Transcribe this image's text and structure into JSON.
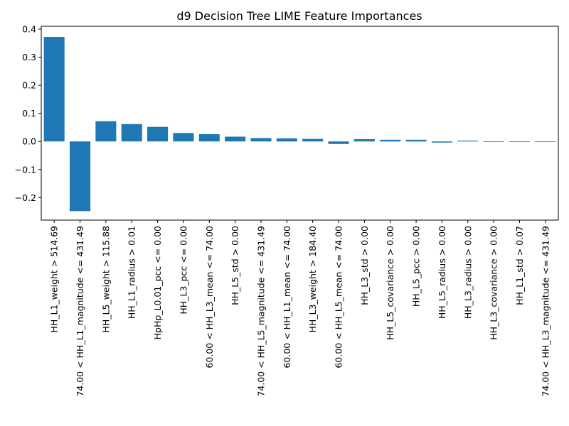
{
  "chart_data": {
    "type": "bar",
    "title": "d9 Decision Tree LIME Feature Importances",
    "xlabel": "",
    "ylabel": "",
    "ylim": [
      -0.28,
      0.41
    ],
    "yticks": [
      -0.2,
      -0.1,
      0.0,
      0.1,
      0.2,
      0.3,
      0.4
    ],
    "ytick_labels": [
      "−0.2",
      "−0.1",
      "0.0",
      "0.1",
      "0.2",
      "0.3",
      "0.4"
    ],
    "bar_color": "#1f77b4",
    "grid": false,
    "categories": [
      "HH_L1_weight > 514.69",
      "74.00 < HH_L1_magnitude <= 431.49",
      "HH_L5_weight > 115.88",
      "HH_L1_radius > 0.01",
      "HpHp_L0.01_pcc <= 0.00",
      "HH_L3_pcc <= 0.00",
      "60.00 < HH_L3_mean <= 74.00",
      "HH_L5_std > 0.00",
      "74.00 < HH_L5_magnitude <= 431.49",
      "60.00 < HH_L1_mean <= 74.00",
      "HH_L3_weight > 184.40",
      "60.00 < HH_L5_mean <= 74.00",
      "HH_L3_std > 0.00",
      "HH_L5_covariance > 0.00",
      "HH_L5_pcc > 0.00",
      "HH_L5_radius > 0.00",
      "HH_L3_radius > 0.00",
      "HH_L3_covariance > 0.00",
      "HH_L1_std > 0.07",
      "74.00 < HH_L3_magnitude <= 431.49"
    ],
    "values": [
      0.372,
      -0.248,
      0.072,
      0.062,
      0.052,
      0.03,
      0.026,
      0.017,
      0.012,
      0.011,
      0.009,
      -0.009,
      0.008,
      0.006,
      0.006,
      -0.004,
      0.003,
      -0.002,
      -0.002,
      -0.002
    ]
  }
}
